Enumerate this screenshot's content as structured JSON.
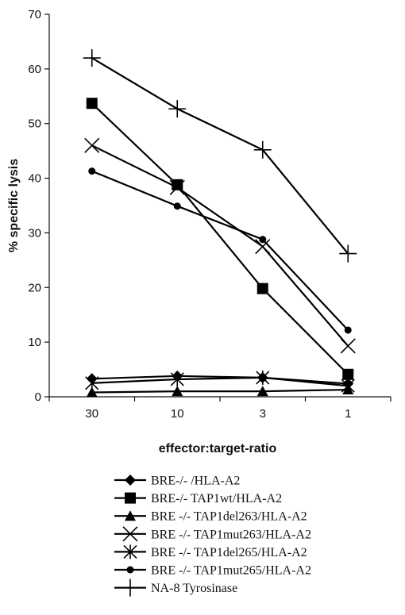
{
  "chart_data": {
    "type": "line",
    "title": "",
    "xlabel": "effector:target-ratio",
    "ylabel": "% specific lysis",
    "categories": [
      "30",
      "10",
      "3",
      "1"
    ],
    "ylim": [
      0,
      70
    ],
    "yticks": [
      "0",
      "10",
      "20",
      "30",
      "40",
      "50",
      "60",
      "70"
    ],
    "grid": false,
    "legend_position": "bottom",
    "series": [
      {
        "name": "BRE-/- /HLA-A2",
        "marker": "diamond",
        "values": [
          3.3,
          3.8,
          3.5,
          2.4
        ]
      },
      {
        "name": "BRE-/- TAP1wt/HLA-A2",
        "marker": "square",
        "values": [
          53.7,
          38.8,
          19.8,
          4.1
        ]
      },
      {
        "name": "BRE -/- TAP1del263/HLA-A2",
        "marker": "triangle",
        "values": [
          0.8,
          1.0,
          1.0,
          1.3
        ]
      },
      {
        "name": "BRE -/- TAP1mut263/HLA-A2",
        "marker": "x",
        "values": [
          46.0,
          38.3,
          27.5,
          9.3
        ]
      },
      {
        "name": "BRE -/- TAP1del265/HLA-A2",
        "marker": "asterisk",
        "values": [
          2.5,
          3.2,
          3.5,
          2.0
        ]
      },
      {
        "name": "BRE -/- TAP1mut265/HLA-A2",
        "marker": "circle",
        "values": [
          41.3,
          34.9,
          28.8,
          12.2
        ]
      },
      {
        "name": "NA-8 Tyrosinase",
        "marker": "plus",
        "values": [
          62.0,
          52.7,
          45.2,
          26.2
        ]
      }
    ]
  }
}
